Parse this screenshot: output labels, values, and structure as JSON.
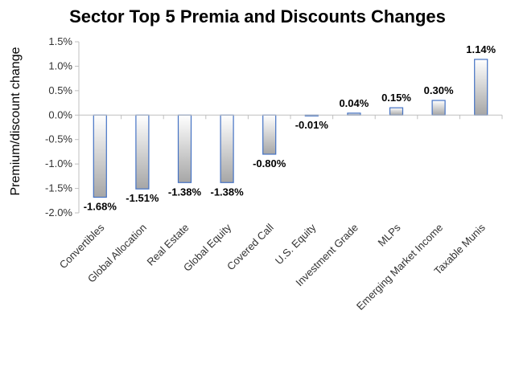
{
  "chart_data": {
    "type": "bar",
    "title": "Sector Top 5 Premia and Discounts Changes",
    "xlabel": "",
    "ylabel": "Premium/discount change",
    "categories": [
      "Convertibles",
      "Global Allocation",
      "Real Estate",
      "Global Equity",
      "Covered Call",
      "U.S. Equity",
      "Investment Grade",
      "MLPs",
      "Emerging Market Income",
      "Taxable Munis"
    ],
    "values": [
      -1.68,
      -1.51,
      -1.38,
      -1.38,
      -0.8,
      -0.01,
      0.04,
      0.15,
      0.3,
      1.14
    ],
    "data_labels": [
      "-1.68%",
      "-1.51%",
      "-1.38%",
      "-1.38%",
      "-0.80%",
      "-0.01%",
      "0.04%",
      "0.15%",
      "0.30%",
      "1.14%"
    ],
    "yticks": [
      "1.5%",
      "1.0%",
      "0.5%",
      "0.0%",
      "-0.5%",
      "-1.0%",
      "-1.5%",
      "-2.0%"
    ],
    "ylim": [
      -2.0,
      1.5
    ],
    "grid": false,
    "legend": "none",
    "bar_color_top": "#ffffff",
    "bar_color_bottom": "#a6a6a6",
    "bar_border_color": "#4472c4",
    "axis_color": "#bfbfbf"
  }
}
